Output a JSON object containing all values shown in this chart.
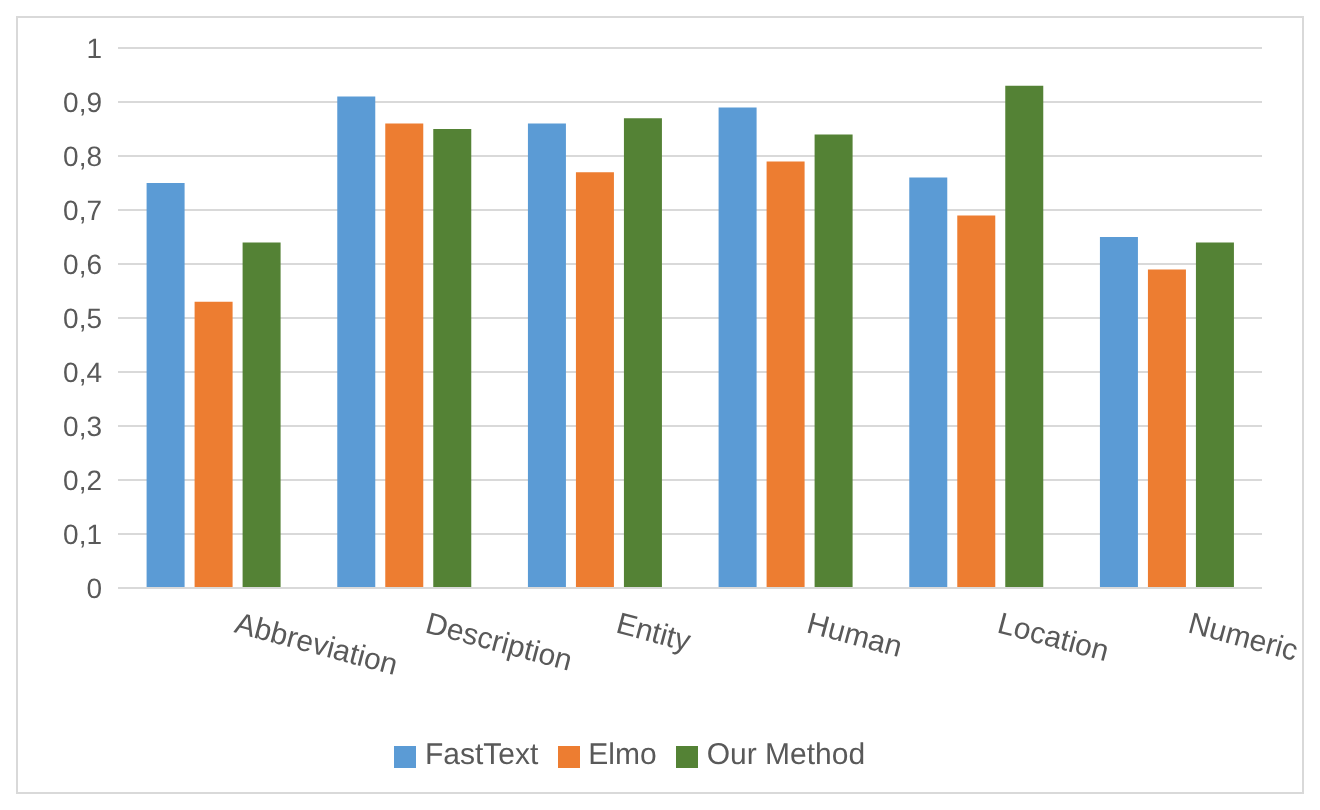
{
  "chart_data": {
    "type": "bar",
    "categories": [
      "Abbreviation",
      "Description",
      "Entity",
      "Human",
      "Location",
      "Numeric"
    ],
    "series": [
      {
        "name": "FastText",
        "color": "#5b9bd5",
        "values": [
          0.75,
          0.91,
          0.86,
          0.89,
          0.76,
          0.65
        ]
      },
      {
        "name": "Elmo",
        "color": "#ed7d31",
        "values": [
          0.53,
          0.86,
          0.77,
          0.79,
          0.69,
          0.59
        ]
      },
      {
        "name": "Our Method",
        "color": "#548235",
        "values": [
          0.64,
          0.85,
          0.87,
          0.84,
          0.93,
          0.64
        ]
      }
    ],
    "ylim": [
      0,
      1
    ],
    "yticks": [
      0,
      {
        "value": 0.1,
        "label": "0,1"
      },
      {
        "value": 0.2,
        "label": "0,2"
      },
      {
        "value": 0.3,
        "label": "0,3"
      },
      {
        "value": 0.4,
        "label": "0,4"
      },
      {
        "value": 0.5,
        "label": "0,5"
      },
      {
        "value": 0.6,
        "label": "0,6"
      },
      {
        "value": 0.7,
        "label": "0,7"
      },
      {
        "value": 0.8,
        "label": "0,8"
      },
      {
        "value": 0.9,
        "label": "0,9"
      },
      1
    ],
    "grid": "y",
    "legend": "bottom"
  }
}
